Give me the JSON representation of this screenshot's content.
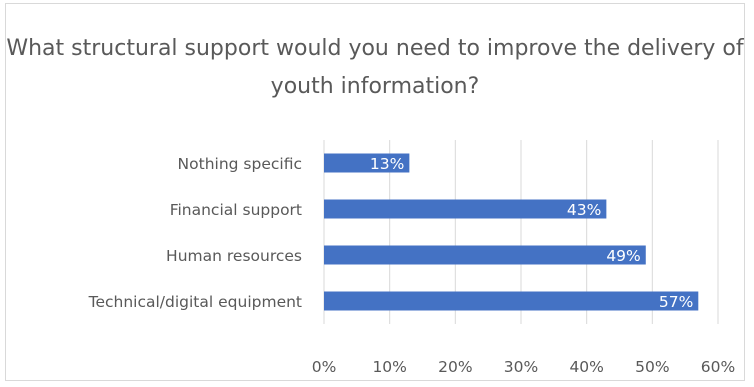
{
  "chart_data": {
    "type": "bar",
    "orientation": "horizontal",
    "title": "What structural support would you need to improve the delivery of youth information?",
    "categories": [
      "Nothing specific",
      "Financial support",
      "Human resources",
      "Technical/digital equipment"
    ],
    "values": [
      13,
      43,
      49,
      57
    ],
    "data_labels": [
      "13%",
      "43%",
      "49%",
      "57%"
    ],
    "xlim": [
      0,
      60
    ],
    "xticks": [
      "0%",
      "10%",
      "20%",
      "30%",
      "40%",
      "50%",
      "60%"
    ],
    "grid": true,
    "legend": "none",
    "bar_color": "#4472c4"
  }
}
